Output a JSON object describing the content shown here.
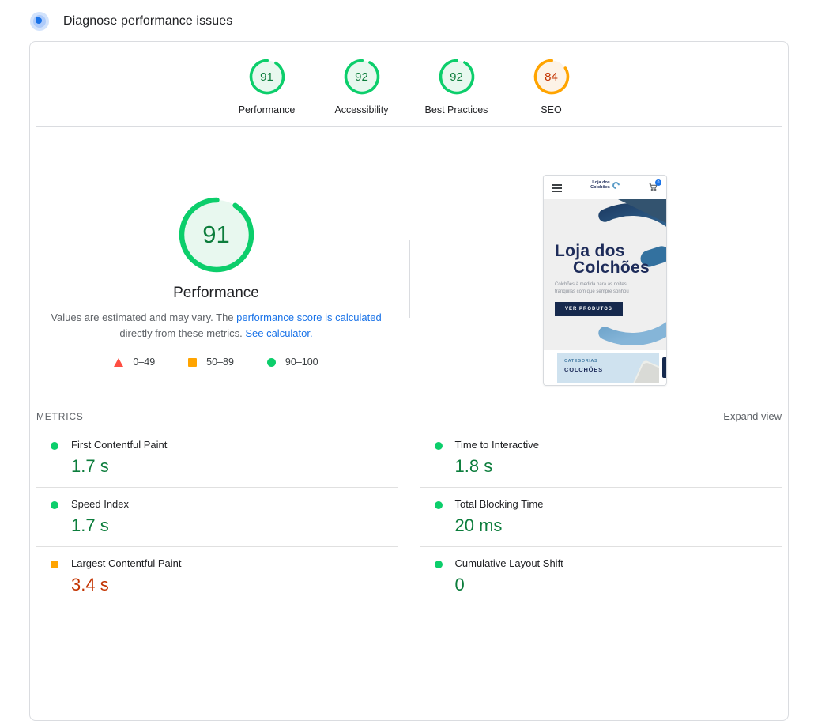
{
  "header": {
    "title": "Diagnose performance issues"
  },
  "summary": {
    "gauges": [
      {
        "label": "Performance",
        "score": 91,
        "status": "good"
      },
      {
        "label": "Accessibility",
        "score": 92,
        "status": "good"
      },
      {
        "label": "Best Practices",
        "score": 92,
        "status": "good"
      },
      {
        "label": "SEO",
        "score": 84,
        "status": "average"
      }
    ]
  },
  "performance_section": {
    "score": 91,
    "status": "good",
    "title": "Performance",
    "description": {
      "text_before": "Values are estimated and may vary. The ",
      "link1": "performance score is calculated",
      "text_middle": " directly from these metrics. ",
      "link2": "See calculator."
    },
    "legend": [
      {
        "icon": "triangle",
        "range": "0–49",
        "color": "#ff4e42"
      },
      {
        "icon": "square",
        "range": "50–89",
        "color": "#ffa400"
      },
      {
        "icon": "circle",
        "range": "90–100",
        "color": "#0cce6b"
      }
    ]
  },
  "screenshot": {
    "logo_line1": "Loja dos",
    "logo_line2": "Colchões",
    "cart_badge": "0",
    "hero_title_line1": "Loja dos",
    "hero_title_line2": "Colchões",
    "hero_subtitle_line1": "Colchões à medida para as noites",
    "hero_subtitle_line2": "tranquilas com que sempre sonhou",
    "hero_button": "VER PRODUTOS",
    "category_label": "CATEGORIAS",
    "category_name": "COLCHÕES"
  },
  "metrics": {
    "heading": "METRICS",
    "expand_label": "Expand view",
    "items": [
      {
        "label": "First Contentful Paint",
        "value": "1.7 s",
        "status": "good"
      },
      {
        "label": "Time to Interactive",
        "value": "1.8 s",
        "status": "good"
      },
      {
        "label": "Speed Index",
        "value": "1.7 s",
        "status": "good"
      },
      {
        "label": "Total Blocking Time",
        "value": "20 ms",
        "status": "good"
      },
      {
        "label": "Largest Contentful Paint",
        "value": "3.4 s",
        "status": "average"
      },
      {
        "label": "Cumulative Layout Shift",
        "value": "0",
        "status": "good"
      }
    ]
  },
  "colors": {
    "pass": "#0cce6b",
    "pass_text": "#0d7d3c",
    "average": "#ffa400",
    "average_text": "#c33300",
    "fail": "#ff4e42",
    "link": "#1a73e8"
  }
}
